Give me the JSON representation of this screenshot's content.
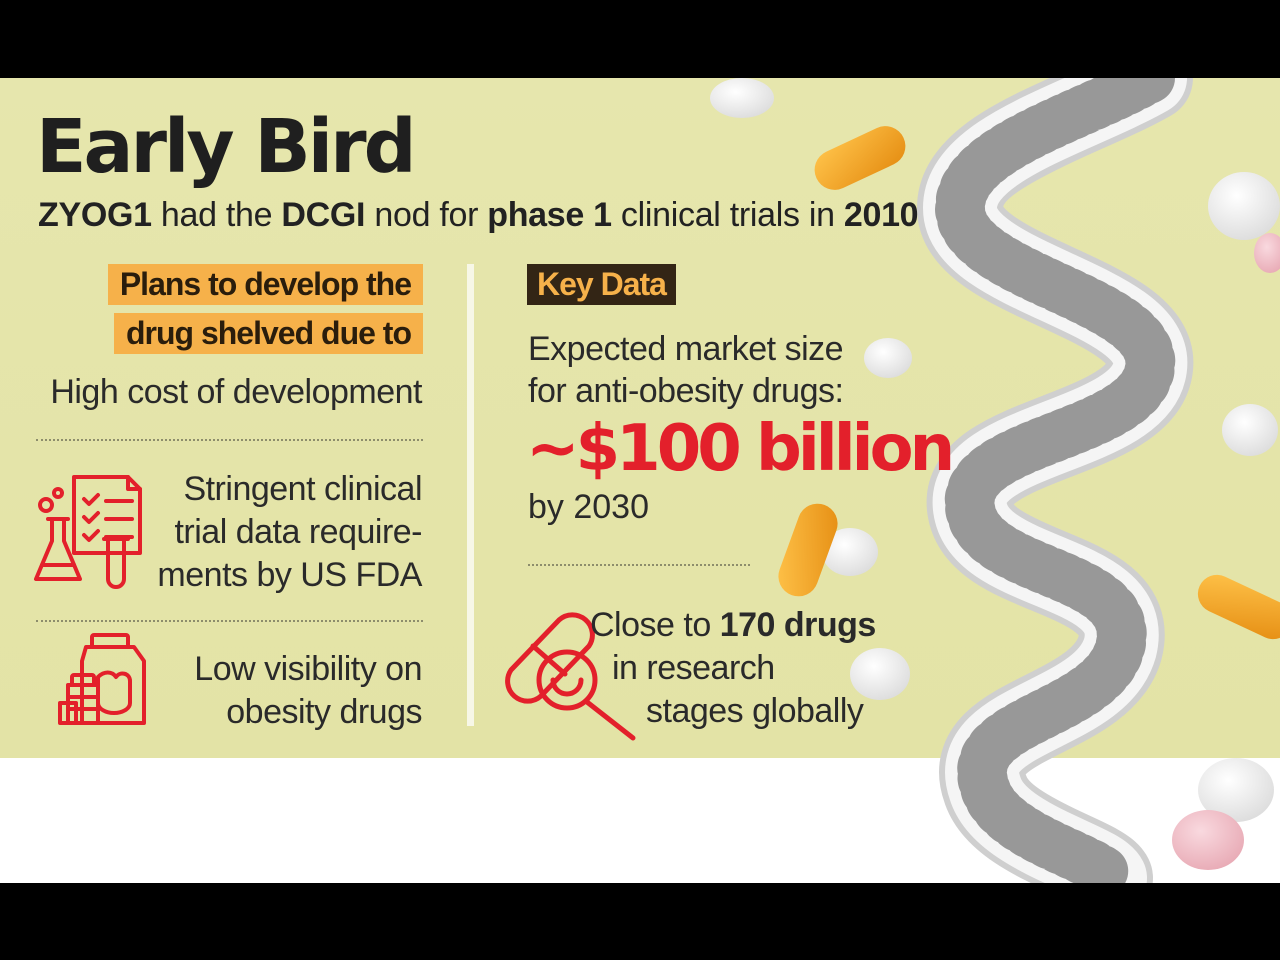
{
  "title": "Early Bird",
  "subtitle": {
    "part1_bold": "ZYOG1",
    "part2": " had the ",
    "part3_bold": "DCGI",
    "part4": " nod for ",
    "part5_bold": "phase 1",
    "part6": " clinical trials in ",
    "part7_bold": "2010"
  },
  "plans": {
    "heading_line1": "Plans to develop the",
    "heading_line2": "drug shelved due to",
    "reasons": [
      {
        "lines": [
          "High cost of development"
        ],
        "icon": null
      },
      {
        "lines": [
          "Stringent clinical",
          "trial data require-",
          "ments by US FDA"
        ],
        "icon": "clinical-checklist-flask-icon"
      },
      {
        "lines": [
          "Low visibility on",
          "obesity drugs"
        ],
        "icon": "medicine-bottles-icon"
      }
    ]
  },
  "key_data": {
    "heading": "Key Data",
    "market_label_line1": "Expected market size",
    "market_label_line2": "for anti-obesity drugs:",
    "market_value": "~$100 billion",
    "market_year": "by 2030",
    "research_prefix": "Close to ",
    "research_bold": "170 drugs",
    "research_line2": "in research",
    "research_line3": "stages globally",
    "research_icon": "capsule-magnifier-icon"
  },
  "colors": {
    "background": "#e6e6ad",
    "highlight": "#f6b14a",
    "badge_dark": "#332515",
    "accent_red": "#e3202b"
  }
}
